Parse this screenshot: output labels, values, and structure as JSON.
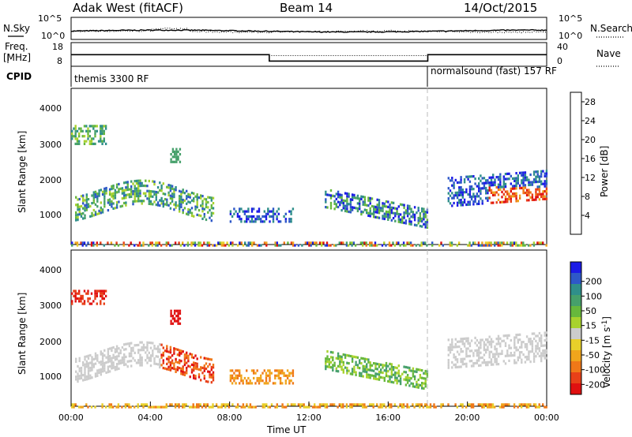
{
  "header": {
    "station": "Adak West (fitACF)",
    "beam": "Beam 14",
    "date": "14/Oct/2015"
  },
  "chart_data": [
    {
      "type": "line",
      "name": "noise-panel",
      "left_label": "N.Sky",
      "right_label": "N.Search",
      "yticks": [
        "10^5",
        "10^0"
      ],
      "scale": "log",
      "series": [
        {
          "name": "N.Sky",
          "style": "solid"
        },
        {
          "name": "N.Search",
          "style": "dotted"
        }
      ]
    },
    {
      "type": "line",
      "name": "frequency-panel",
      "left_label": "Freq. [MHz]",
      "right_label": "Nave",
      "left_ticks": [
        18,
        8
      ],
      "right_ticks": [
        40,
        0
      ],
      "freq_segments": [
        {
          "x0": 0.0,
          "x1": 10.0,
          "freq": 12.9
        },
        {
          "x0": 10.0,
          "x1": 18.0,
          "freq": 10.2
        },
        {
          "x0": 18.0,
          "x1": 24.0,
          "freq": 12.9
        }
      ],
      "nave_segments": [
        {
          "x0": 0.0,
          "x1": 10.0,
          "nave": 20
        },
        {
          "x0": 10.0,
          "x1": 18.0,
          "nave": 18
        },
        {
          "x0": 18.0,
          "x1": 24.0,
          "nave": 20
        }
      ],
      "cpid_label": "CPID",
      "programs": [
        {
          "name": "themis 3300 RF",
          "start": 0.0
        },
        {
          "name": "normalsound (fast) 157 RF",
          "start": 18.0
        }
      ]
    },
    {
      "type": "heatmap",
      "name": "power-panel",
      "ylabel": "Slant Range [km]",
      "yticks": [
        1000,
        2000,
        3000,
        4000
      ],
      "ylim": [
        180,
        4500
      ],
      "colorbar_label": "Power [dB]",
      "colorbar_ticks": [
        4,
        8,
        12,
        16,
        20,
        24,
        28
      ],
      "colorbar_colors": [
        "#1b1be6",
        "#2e58c8",
        "#2f8f8a",
        "#46a06b",
        "#67b83c",
        "#a8d22e",
        "#e8d02a",
        "#f0a51c",
        "#f07818",
        "#e84018",
        "#e01010"
      ]
    },
    {
      "type": "heatmap",
      "name": "velocity-panel",
      "ylabel": "Slant Range [km]",
      "yticks": [
        1000,
        2000,
        3000,
        4000
      ],
      "ylim": [
        180,
        4500
      ],
      "xlabel": "Time UT",
      "xticks": [
        "00:00",
        "04:00",
        "08:00",
        "12:00",
        "16:00",
        "20:00",
        "00:00"
      ],
      "xlim": [
        0,
        24
      ],
      "colorbar_label": "Velocity [m s-1]",
      "colorbar_ticks": [
        200,
        100,
        50,
        15,
        -15,
        -50,
        -100,
        -200
      ],
      "colorbar_colors": [
        "#1b1be6",
        "#2e58c8",
        "#2f8f8a",
        "#46a06b",
        "#67b83c",
        "#a8d22e",
        "#cccccc",
        "#e8d02a",
        "#f0a51c",
        "#f07818",
        "#e84018",
        "#e01010"
      ],
      "regions": [
        {
          "t0": 0.0,
          "t1": 1.2,
          "r0": 3000,
          "r1": 3500,
          "color": "orange-red"
        },
        {
          "t0": 0.3,
          "t1": 7.0,
          "r0": 1200,
          "r1": 2200,
          "color": "grey-to-red"
        },
        {
          "t0": 7.8,
          "t1": 11.0,
          "r0": 800,
          "r1": 1300,
          "color": "orange"
        },
        {
          "t0": 13.5,
          "t1": 18.0,
          "r0": 700,
          "r1": 1600,
          "color": "green"
        },
        {
          "t0": 19.0,
          "t1": 24.0,
          "r0": 1200,
          "r1": 2600,
          "color": "grey"
        }
      ]
    }
  ]
}
